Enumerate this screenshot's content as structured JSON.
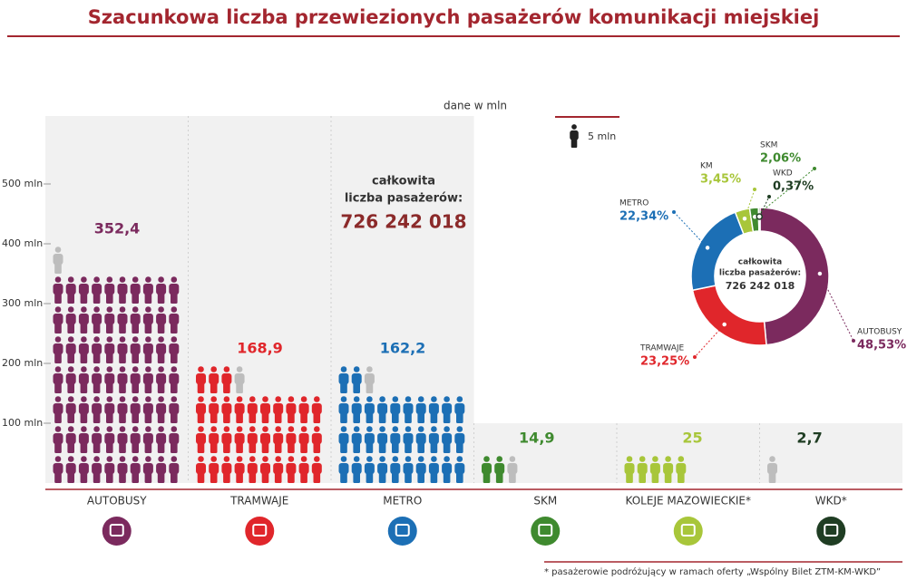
{
  "chart_data": {
    "type": "pictogram",
    "title": "Szacunkowa liczba przewiezionych pasażerów komunikacji miejskiej",
    "unit_label": "dane w mln",
    "legend_label": "5 mln",
    "icon_value": 5,
    "categories": [
      "AUTOBUSY",
      "TRAMWAJE",
      "METRO",
      "SKM",
      "KOLEJE MAZOWIECKIE*",
      "WKD*"
    ],
    "values": [
      352.4,
      168.9,
      162.2,
      14.9,
      25,
      2.7
    ],
    "value_labels": [
      "352,4",
      "168,9",
      "162,2",
      "14,9",
      "25",
      "2,7"
    ],
    "colors": [
      "#7b2a5e",
      "#e0262b",
      "#1c6fb5",
      "#3f8a2f",
      "#a8c63a",
      "#1f3d23"
    ],
    "ylim": [
      0,
      600
    ],
    "yticks": [
      {
        "value": 100,
        "label": "100 mln"
      },
      {
        "value": 200,
        "label": "200 mln"
      },
      {
        "value": 300,
        "label": "300 mln"
      },
      {
        "value": 400,
        "label": "400 mln"
      },
      {
        "value": 500,
        "label": "500 mln"
      }
    ],
    "total_label": [
      "całkowita",
      "liczba pasażerów:"
    ],
    "total": "726 242 018",
    "donut": {
      "type": "donut",
      "labels": [
        "AUTOBUSY",
        "TRAMWAJE",
        "METRO",
        "KM",
        "SKM",
        "WKD"
      ],
      "values": [
        48.53,
        23.25,
        22.34,
        3.45,
        2.06,
        0.37
      ],
      "value_labels": [
        "48,53%",
        "23,25%",
        "22,34%",
        "3,45%",
        "2,06%",
        "0,37%"
      ],
      "colors": [
        "#7b2a5e",
        "#e0262b",
        "#1c6fb5",
        "#a8c63a",
        "#3f8a2f",
        "#1f3d23"
      ]
    },
    "footnote": "* pasażerowie podróżujący w ramach oferty „Wspólny Bilet ZTM-KM-WKD”"
  }
}
